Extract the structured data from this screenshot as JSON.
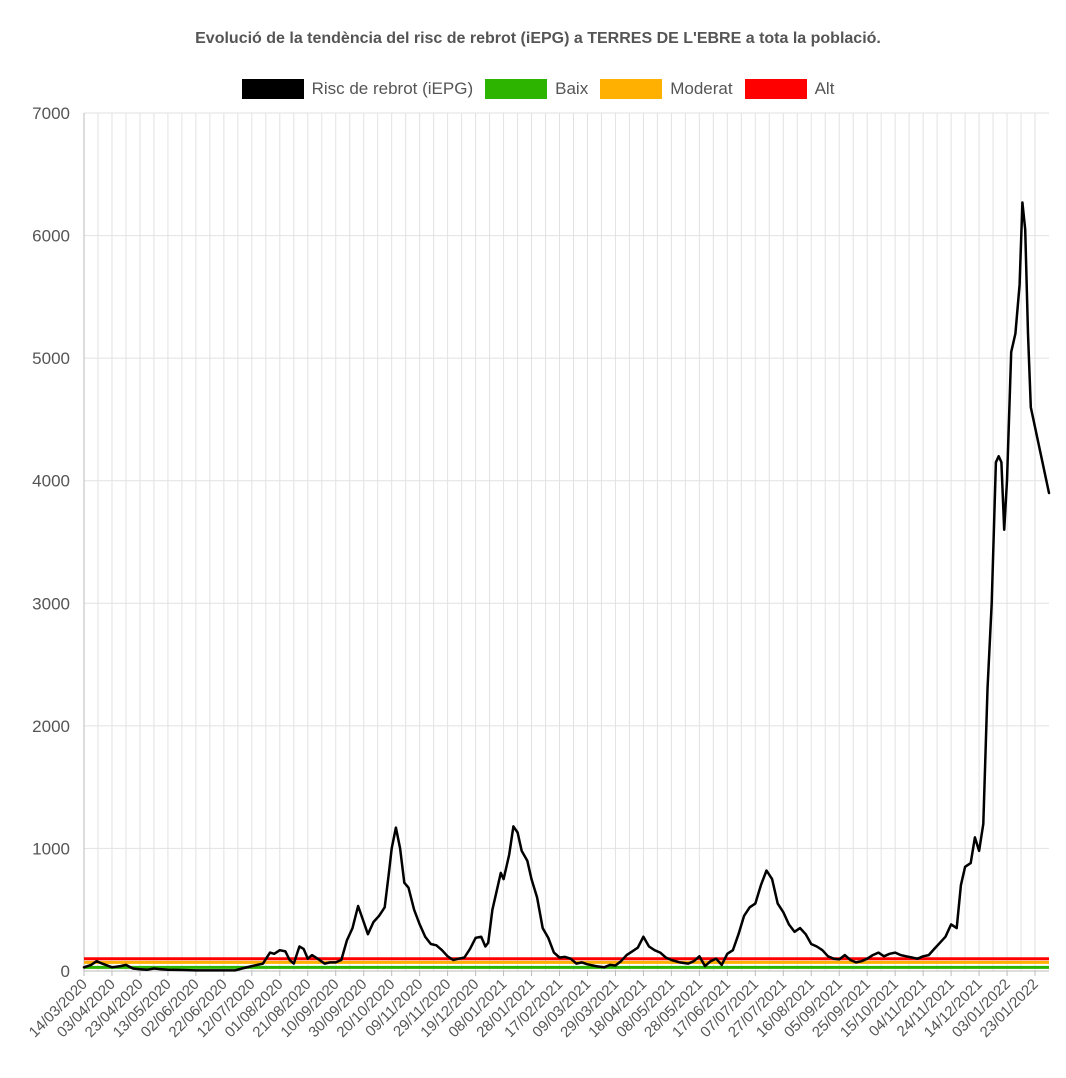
{
  "chart_data": {
    "type": "line",
    "title": "Evolució de la tendència del risc de rebrot (iEPG) a TERRES DE L'EBRE a tota la població.",
    "ylim": [
      0,
      7000
    ],
    "yticks": [
      0,
      1000,
      2000,
      3000,
      4000,
      5000,
      6000,
      7000
    ],
    "x_start": "14/03/2020",
    "x_end": "02/02/2022",
    "x_tick_labels": [
      "14/03/2020",
      "03/04/2020",
      "23/04/2020",
      "13/05/2020",
      "02/06/2020",
      "22/06/2020",
      "12/07/2020",
      "01/08/2020",
      "21/08/2020",
      "10/09/2020",
      "30/09/2020",
      "20/10/2020",
      "09/11/2020",
      "29/11/2020",
      "19/12/2020",
      "08/01/2021",
      "28/01/2021",
      "17/02/2021",
      "09/03/2021",
      "29/03/2021",
      "18/04/2021",
      "08/05/2021",
      "28/05/2021",
      "17/06/2021",
      "07/07/2021",
      "27/07/2021",
      "16/08/2021",
      "05/09/2021",
      "25/09/2021",
      "15/10/2021",
      "04/11/2021",
      "24/11/2021",
      "14/12/2021",
      "03/01/2022",
      "23/01/2022"
    ],
    "grid": true,
    "legend_position": "top",
    "series": [
      {
        "name": "Risc de rebrot (iEPG)",
        "color": "#000000",
        "points": [
          [
            "14/03/2020",
            30
          ],
          [
            "19/03/2020",
            50
          ],
          [
            "23/03/2020",
            80
          ],
          [
            "27/03/2020",
            60
          ],
          [
            "03/04/2020",
            30
          ],
          [
            "09/04/2020",
            40
          ],
          [
            "13/04/2020",
            50
          ],
          [
            "18/04/2020",
            20
          ],
          [
            "23/04/2020",
            15
          ],
          [
            "28/04/2020",
            10
          ],
          [
            "03/05/2020",
            20
          ],
          [
            "08/05/2020",
            15
          ],
          [
            "13/05/2020",
            10
          ],
          [
            "23/05/2020",
            8
          ],
          [
            "02/06/2020",
            5
          ],
          [
            "12/06/2020",
            5
          ],
          [
            "22/06/2020",
            5
          ],
          [
            "30/06/2020",
            5
          ],
          [
            "05/07/2020",
            20
          ],
          [
            "12/07/2020",
            40
          ],
          [
            "20/07/2020",
            60
          ],
          [
            "25/07/2020",
            150
          ],
          [
            "28/07/2020",
            140
          ],
          [
            "01/08/2020",
            170
          ],
          [
            "05/08/2020",
            160
          ],
          [
            "08/08/2020",
            90
          ],
          [
            "11/08/2020",
            60
          ],
          [
            "15/08/2020",
            200
          ],
          [
            "18/08/2020",
            180
          ],
          [
            "21/08/2020",
            100
          ],
          [
            "24/08/2020",
            130
          ],
          [
            "28/08/2020",
            100
          ],
          [
            "02/09/2020",
            60
          ],
          [
            "06/09/2020",
            70
          ],
          [
            "10/09/2020",
            70
          ],
          [
            "14/09/2020",
            90
          ],
          [
            "18/09/2020",
            250
          ],
          [
            "22/09/2020",
            350
          ],
          [
            "26/09/2020",
            530
          ],
          [
            "30/09/2020",
            400
          ],
          [
            "03/10/2020",
            300
          ],
          [
            "07/10/2020",
            400
          ],
          [
            "11/10/2020",
            450
          ],
          [
            "15/10/2020",
            520
          ],
          [
            "18/10/2020",
            800
          ],
          [
            "20/10/2020",
            1000
          ],
          [
            "23/10/2020",
            1170
          ],
          [
            "26/10/2020",
            1000
          ],
          [
            "29/10/2020",
            720
          ],
          [
            "01/11/2020",
            680
          ],
          [
            "05/11/2020",
            500
          ],
          [
            "09/11/2020",
            380
          ],
          [
            "13/11/2020",
            280
          ],
          [
            "17/11/2020",
            220
          ],
          [
            "21/11/2020",
            210
          ],
          [
            "25/11/2020",
            170
          ],
          [
            "29/11/2020",
            120
          ],
          [
            "03/12/2020",
            90
          ],
          [
            "07/12/2020",
            100
          ],
          [
            "11/12/2020",
            110
          ],
          [
            "15/12/2020",
            180
          ],
          [
            "19/12/2020",
            270
          ],
          [
            "23/12/2020",
            280
          ],
          [
            "26/12/2020",
            200
          ],
          [
            "28/12/2020",
            230
          ],
          [
            "31/12/2020",
            500
          ],
          [
            "03/01/2021",
            650
          ],
          [
            "06/01/2021",
            800
          ],
          [
            "08/01/2021",
            750
          ],
          [
            "12/01/2021",
            950
          ],
          [
            "15/01/2021",
            1180
          ],
          [
            "18/01/2021",
            1130
          ],
          [
            "21/01/2021",
            980
          ],
          [
            "25/01/2021",
            900
          ],
          [
            "28/01/2021",
            750
          ],
          [
            "01/02/2021",
            600
          ],
          [
            "05/02/2021",
            350
          ],
          [
            "09/02/2021",
            270
          ],
          [
            "13/02/2021",
            150
          ],
          [
            "17/02/2021",
            110
          ],
          [
            "21/02/2021",
            115
          ],
          [
            "25/02/2021",
            100
          ],
          [
            "01/03/2021",
            60
          ],
          [
            "05/03/2021",
            70
          ],
          [
            "09/03/2021",
            55
          ],
          [
            "15/03/2021",
            40
          ],
          [
            "21/03/2021",
            30
          ],
          [
            "25/03/2021",
            50
          ],
          [
            "29/03/2021",
            45
          ],
          [
            "02/04/2021",
            80
          ],
          [
            "06/04/2021",
            130
          ],
          [
            "10/04/2021",
            160
          ],
          [
            "14/04/2021",
            190
          ],
          [
            "18/04/2021",
            280
          ],
          [
            "22/04/2021",
            200
          ],
          [
            "26/04/2021",
            170
          ],
          [
            "30/04/2021",
            150
          ],
          [
            "04/05/2021",
            110
          ],
          [
            "08/05/2021",
            90
          ],
          [
            "14/05/2021",
            70
          ],
          [
            "20/05/2021",
            60
          ],
          [
            "24/05/2021",
            80
          ],
          [
            "28/05/2021",
            120
          ],
          [
            "01/06/2021",
            40
          ],
          [
            "05/06/2021",
            80
          ],
          [
            "09/06/2021",
            100
          ],
          [
            "13/06/2021",
            50
          ],
          [
            "17/06/2021",
            140
          ],
          [
            "21/06/2021",
            170
          ],
          [
            "25/06/2021",
            300
          ],
          [
            "29/06/2021",
            450
          ],
          [
            "03/07/2021",
            520
          ],
          [
            "07/07/2021",
            550
          ],
          [
            "11/07/2021",
            700
          ],
          [
            "15/07/2021",
            820
          ],
          [
            "19/07/2021",
            750
          ],
          [
            "23/07/2021",
            550
          ],
          [
            "27/07/2021",
            480
          ],
          [
            "31/07/2021",
            380
          ],
          [
            "04/08/2021",
            320
          ],
          [
            "08/08/2021",
            350
          ],
          [
            "12/08/2021",
            300
          ],
          [
            "16/08/2021",
            220
          ],
          [
            "20/08/2021",
            200
          ],
          [
            "24/08/2021",
            170
          ],
          [
            "28/08/2021",
            120
          ],
          [
            "01/09/2021",
            100
          ],
          [
            "05/09/2021",
            95
          ],
          [
            "09/09/2021",
            130
          ],
          [
            "13/09/2021",
            90
          ],
          [
            "17/09/2021",
            70
          ],
          [
            "21/09/2021",
            80
          ],
          [
            "25/09/2021",
            100
          ],
          [
            "29/09/2021",
            130
          ],
          [
            "03/10/2021",
            150
          ],
          [
            "07/10/2021",
            120
          ],
          [
            "11/10/2021",
            140
          ],
          [
            "15/10/2021",
            150
          ],
          [
            "19/10/2021",
            130
          ],
          [
            "23/10/2021",
            120
          ],
          [
            "27/10/2021",
            110
          ],
          [
            "31/10/2021",
            100
          ],
          [
            "04/11/2021",
            120
          ],
          [
            "08/11/2021",
            130
          ],
          [
            "12/11/2021",
            180
          ],
          [
            "16/11/2021",
            230
          ],
          [
            "20/11/2021",
            280
          ],
          [
            "24/11/2021",
            380
          ],
          [
            "28/11/2021",
            350
          ],
          [
            "01/12/2021",
            700
          ],
          [
            "04/12/2021",
            850
          ],
          [
            "08/12/2021",
            880
          ],
          [
            "11/12/2021",
            1090
          ],
          [
            "14/12/2021",
            980
          ],
          [
            "17/12/2021",
            1200
          ],
          [
            "20/12/2021",
            2300
          ],
          [
            "23/12/2021",
            3000
          ],
          [
            "26/12/2021",
            4150
          ],
          [
            "28/12/2021",
            4200
          ],
          [
            "30/12/2021",
            4150
          ],
          [
            "01/01/2022",
            3600
          ],
          [
            "03/01/2022",
            4000
          ],
          [
            "06/01/2022",
            5050
          ],
          [
            "09/01/2022",
            5200
          ],
          [
            "12/01/2022",
            5600
          ],
          [
            "14/01/2022",
            6270
          ],
          [
            "16/01/2022",
            6050
          ],
          [
            "18/01/2022",
            5200
          ],
          [
            "20/01/2022",
            4600
          ],
          [
            "02/02/2022",
            3900
          ]
        ]
      },
      {
        "name": "Baix",
        "color": "#2db400",
        "points": [
          [
            "14/03/2020",
            30
          ],
          [
            "02/02/2022",
            30
          ]
        ]
      },
      {
        "name": "Moderat",
        "color": "#ffb000",
        "points": [
          [
            "14/03/2020",
            70
          ],
          [
            "02/02/2022",
            70
          ]
        ]
      },
      {
        "name": "Alt",
        "color": "#ff0000",
        "points": [
          [
            "14/03/2020",
            100
          ],
          [
            "02/02/2022",
            100
          ]
        ]
      }
    ]
  }
}
